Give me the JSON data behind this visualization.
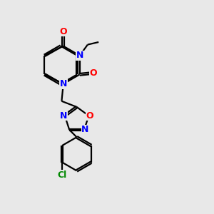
{
  "bg_color": "#e8e8e8",
  "atom_colors": {
    "N": "#0000ff",
    "O": "#ff0000",
    "Cl": "#008800"
  },
  "bond_color": "#000000",
  "bond_width": 1.6,
  "figsize": [
    3.0,
    3.0
  ],
  "dpi": 100
}
